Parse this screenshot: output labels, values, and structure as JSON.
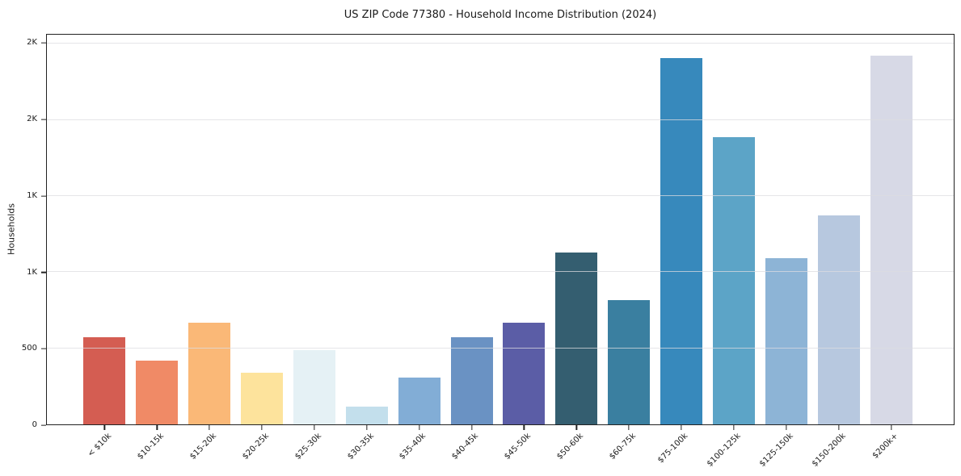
{
  "chart_data": {
    "type": "bar",
    "title": "US ZIP Code 77380 - Household Income Distribution (2024)",
    "xlabel": "",
    "ylabel": "Households",
    "categories": [
      "< $10k",
      "$10-15k",
      "$15-20k",
      "$20-25k",
      "$25-30k",
      "$30-35k",
      "$35-40k",
      "$40-45k",
      "$45-50k",
      "$50-60k",
      "$60-75k",
      "$75-100k",
      "$100-125k",
      "$125-150k",
      "$150-200k",
      "$200k+"
    ],
    "values": [
      575,
      420,
      670,
      340,
      490,
      115,
      310,
      575,
      670,
      1130,
      815,
      2405,
      1885,
      1090,
      1375,
      2420
    ],
    "bar_colors": [
      "#d45d52",
      "#f08a66",
      "#fab877",
      "#fde39c",
      "#e5f1f5",
      "#c3dfec",
      "#82add6",
      "#6a92c3",
      "#5b5da6",
      "#345e70",
      "#3a7fa0",
      "#3789bc",
      "#5ca4c7",
      "#8db4d6",
      "#b7c8df",
      "#d7d9e6"
    ],
    "ylim": [
      0,
      2560
    ],
    "yticks": [
      {
        "value": 0,
        "label": "0"
      },
      {
        "value": 500,
        "label": "500"
      },
      {
        "value": 1000,
        "label": "1K"
      },
      {
        "value": 1500,
        "label": "1K"
      },
      {
        "value": 2000,
        "label": "2K"
      },
      {
        "value": 2500,
        "label": "2K"
      }
    ],
    "grid": "horizontal, drawn above bars",
    "legend": "none",
    "colors": {
      "background": "#ffffff",
      "spine": "#222222",
      "grid": "#dcdce0",
      "text": "#1a1a1a"
    }
  }
}
